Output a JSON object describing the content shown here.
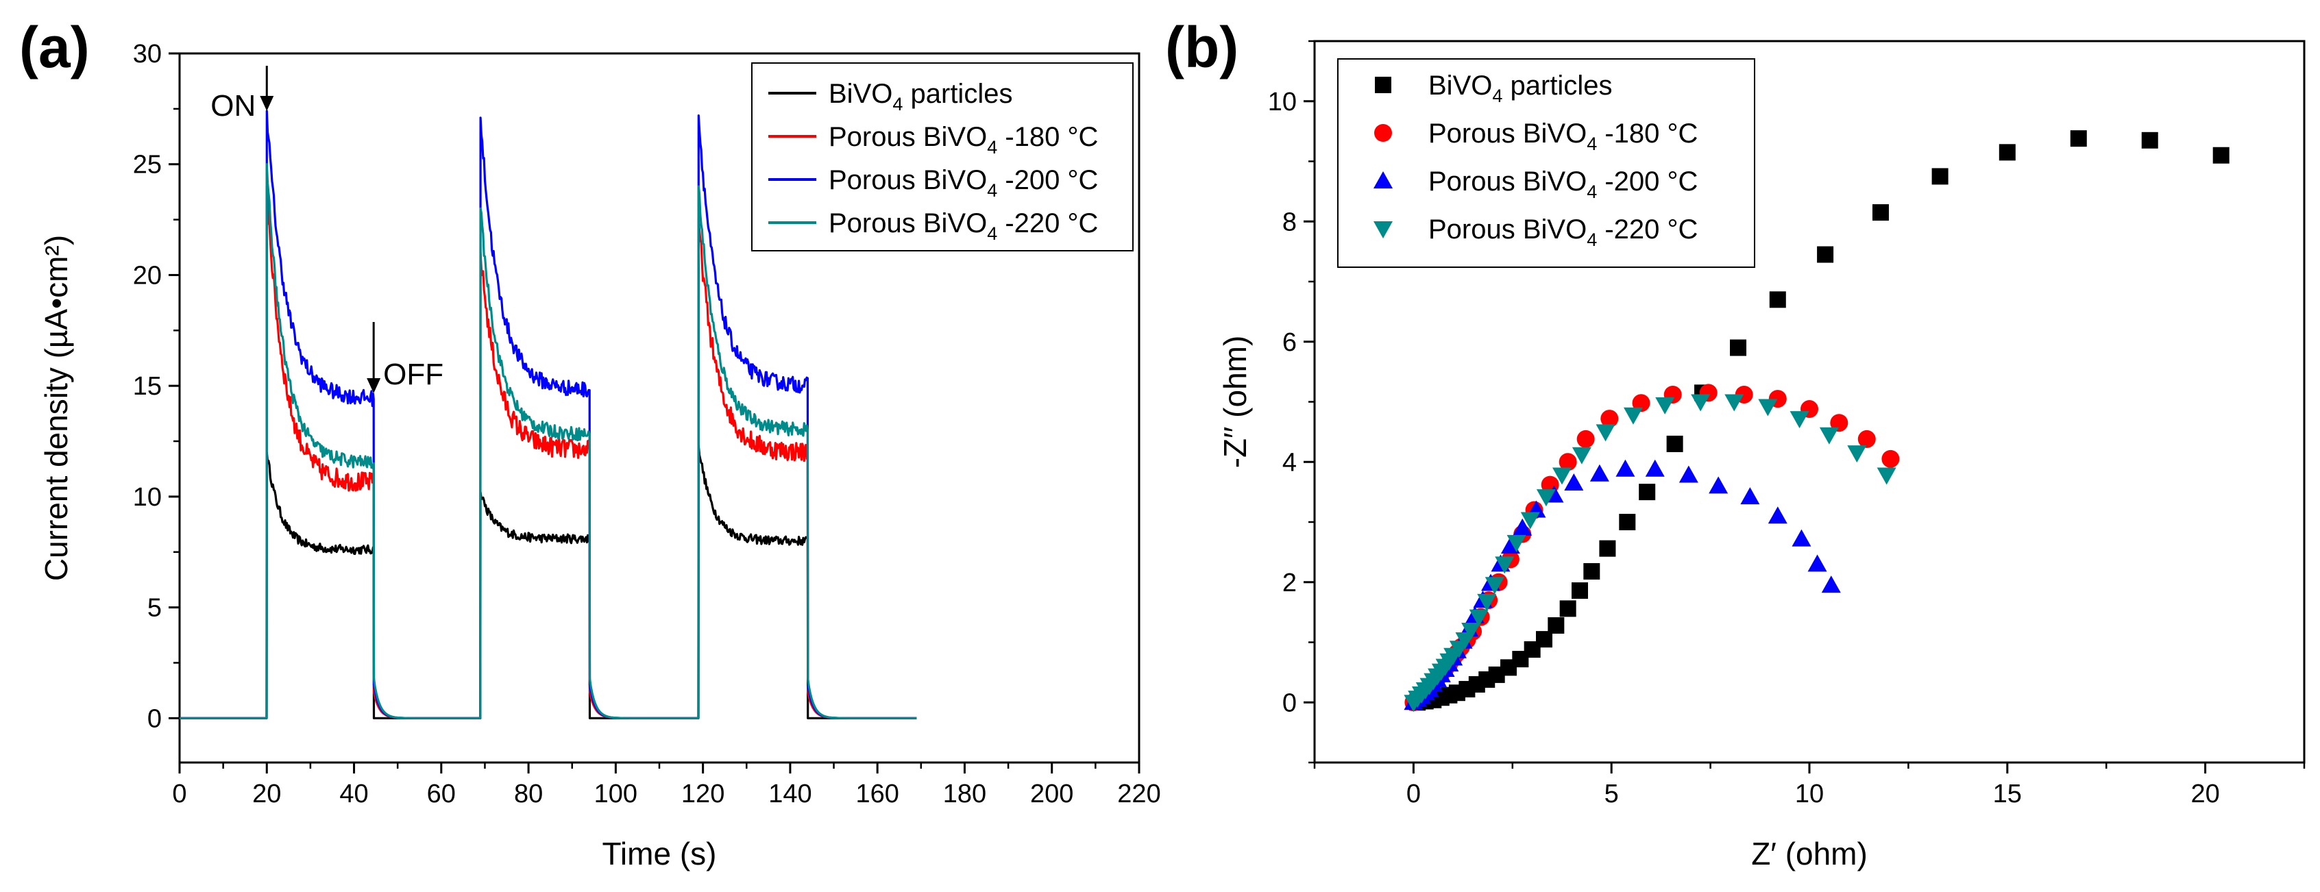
{
  "figure": {
    "panel_a_label": "(a)",
    "panel_b_label": "(b)"
  },
  "chart_data": [
    {
      "type": "line",
      "panel": "(a)",
      "title": "",
      "xlabel": "Time (s)",
      "ylabel": "Current density (µA•cm²)",
      "xlim": [
        0,
        220
      ],
      "ylim": [
        -2,
        30
      ],
      "xticks": [
        0,
        20,
        40,
        60,
        80,
        100,
        120,
        140,
        160,
        180,
        200,
        220
      ],
      "yticks": [
        0,
        5,
        10,
        15,
        20,
        25,
        30
      ],
      "grid": false,
      "legend_position": "top-right",
      "light_on_times": [
        20,
        69,
        119
      ],
      "light_off_times": [
        44.5,
        94,
        144
      ],
      "time_end": 169,
      "annotations": [
        {
          "text": "ON",
          "x": 20,
          "y": 26.5
        },
        {
          "text": "OFF",
          "x": 44.5,
          "y": 15.5
        }
      ],
      "series": [
        {
          "name": "BiVO4 particles",
          "legend_main": "BiVO",
          "legend_sub": "4",
          "legend_tail": " particles",
          "color": "#000000",
          "peaks": [
            12.0,
            10.2,
            12.3
          ],
          "steady": [
            7.6,
            8.1,
            8.0
          ],
          "noise": 0.2,
          "tau": 3.2
        },
        {
          "name": "Porous BiVO4 -180 °C",
          "legend_main": "Porous BiVO",
          "legend_sub": "4",
          "legend_tail": " -180 °C",
          "color": "#ff0000",
          "peaks": [
            24.0,
            21.0,
            22.5
          ],
          "steady": [
            10.6,
            12.1,
            12.0
          ],
          "noise": 0.45,
          "tau": 4.0
        },
        {
          "name": "Porous BiVO4 -200 °C",
          "legend_main": "Porous BiVO",
          "legend_sub": "4",
          "legend_tail": " -200 °C",
          "color": "#0000ff",
          "peaks": [
            27.4,
            27.1,
            27.2
          ],
          "steady": [
            14.4,
            14.8,
            15.0
          ],
          "noise": 0.35,
          "tau": 4.2
        },
        {
          "name": "Porous BiVO4 -220 °C",
          "legend_main": "Porous BiVO",
          "legend_sub": "4",
          "legend_tail": " -220 °C",
          "color": "#008b8b",
          "peaks": [
            25.0,
            23.0,
            24.0
          ],
          "steady": [
            11.5,
            12.8,
            13.0
          ],
          "noise": 0.3,
          "tau": 4.0
        }
      ]
    },
    {
      "type": "scatter",
      "panel": "(b)",
      "title": "",
      "xlabel": "Z′ (ohm)",
      "ylabel": "-Z′′ (ohm)",
      "xlim": [
        -2.5,
        22.5
      ],
      "ylim": [
        -1,
        11
      ],
      "xticks": [
        0,
        5,
        10,
        15,
        20
      ],
      "yticks": [
        0,
        2,
        4,
        6,
        8,
        10
      ],
      "grid": false,
      "legend_position": "top-left",
      "series": [
        {
          "name": "BiVO4 particles",
          "legend_main": "BiVO",
          "legend_sub": "4",
          "legend_tail": " particles",
          "color": "#000000",
          "marker": "square",
          "x": [
            0.1,
            0.3,
            0.5,
            0.7,
            0.9,
            1.1,
            1.35,
            1.6,
            1.85,
            2.1,
            2.4,
            2.7,
            3.0,
            3.3,
            3.6,
            3.9,
            4.2,
            4.5,
            4.9,
            5.4,
            5.9,
            6.6,
            7.3,
            8.2,
            9.2,
            10.4,
            11.8,
            13.3,
            15.0,
            16.8,
            18.6,
            20.4
          ],
          "y": [
            0.0,
            0.02,
            0.04,
            0.08,
            0.12,
            0.16,
            0.22,
            0.3,
            0.38,
            0.46,
            0.58,
            0.72,
            0.88,
            1.05,
            1.28,
            1.56,
            1.86,
            2.18,
            2.56,
            3.0,
            3.5,
            4.3,
            5.15,
            5.9,
            6.7,
            7.45,
            8.15,
            8.75,
            9.15,
            9.38,
            9.35,
            9.1
          ]
        },
        {
          "name": "Porous BiVO4 -180 °C",
          "legend_main": "Porous BiVO",
          "legend_sub": "4",
          "legend_tail": " -180 °C",
          "color": "#ff0000",
          "marker": "circle",
          "x": [
            0.0,
            0.1,
            0.2,
            0.3,
            0.4,
            0.5,
            0.6,
            0.7,
            0.8,
            0.9,
            1.0,
            1.1,
            1.2,
            1.35,
            1.5,
            1.7,
            1.9,
            2.15,
            2.45,
            2.75,
            3.05,
            3.45,
            3.9,
            4.35,
            4.95,
            5.75,
            6.55,
            7.45,
            8.35,
            9.2,
            10.0,
            10.75,
            11.45,
            12.05
          ],
          "y": [
            0.0,
            0.06,
            0.12,
            0.18,
            0.25,
            0.32,
            0.4,
            0.48,
            0.56,
            0.64,
            0.73,
            0.82,
            0.92,
            1.04,
            1.18,
            1.42,
            1.7,
            2.0,
            2.38,
            2.8,
            3.2,
            3.62,
            4.0,
            4.38,
            4.72,
            4.98,
            5.12,
            5.15,
            5.12,
            5.05,
            4.88,
            4.65,
            4.38,
            4.05
          ]
        },
        {
          "name": "Porous BiVO4 -200 °C",
          "legend_main": "Porous BiVO",
          "legend_sub": "4",
          "legend_tail": " -200 °C",
          "color": "#0000ff",
          "marker": "triangle-up",
          "x": [
            0.0,
            0.1,
            0.2,
            0.3,
            0.4,
            0.5,
            0.6,
            0.7,
            0.8,
            0.9,
            1.0,
            1.1,
            1.25,
            1.4,
            1.55,
            1.75,
            1.95,
            2.2,
            2.45,
            2.75,
            3.1,
            3.55,
            4.05,
            4.7,
            5.35,
            6.1,
            6.95,
            7.7,
            8.5,
            9.2,
            9.8,
            10.2,
            10.55
          ],
          "y": [
            0.0,
            0.05,
            0.1,
            0.16,
            0.22,
            0.3,
            0.38,
            0.46,
            0.55,
            0.64,
            0.74,
            0.86,
            1.02,
            1.22,
            1.44,
            1.7,
            1.98,
            2.3,
            2.6,
            2.9,
            3.2,
            3.45,
            3.65,
            3.8,
            3.88,
            3.88,
            3.78,
            3.6,
            3.42,
            3.1,
            2.72,
            2.3,
            1.95
          ]
        },
        {
          "name": "Porous BiVO4 -220 °C",
          "legend_main": "Porous BiVO",
          "legend_sub": "4",
          "legend_tail": " -220 °C",
          "color": "#008b8b",
          "marker": "triangle-down",
          "x": [
            0.0,
            0.1,
            0.2,
            0.3,
            0.4,
            0.5,
            0.6,
            0.7,
            0.8,
            0.9,
            1.0,
            1.15,
            1.3,
            1.45,
            1.65,
            1.85,
            2.05,
            2.3,
            2.6,
            2.95,
            3.35,
            3.75,
            4.25,
            4.85,
            5.55,
            6.35,
            7.25,
            8.1,
            8.95,
            9.75,
            10.5,
            11.2,
            11.95
          ],
          "y": [
            0.0,
            0.07,
            0.14,
            0.21,
            0.28,
            0.36,
            0.44,
            0.52,
            0.6,
            0.69,
            0.78,
            0.9,
            1.04,
            1.2,
            1.42,
            1.68,
            1.96,
            2.3,
            2.66,
            3.04,
            3.42,
            3.78,
            4.12,
            4.5,
            4.78,
            4.95,
            5.0,
            5.0,
            4.92,
            4.72,
            4.45,
            4.15,
            3.78
          ]
        }
      ]
    }
  ]
}
